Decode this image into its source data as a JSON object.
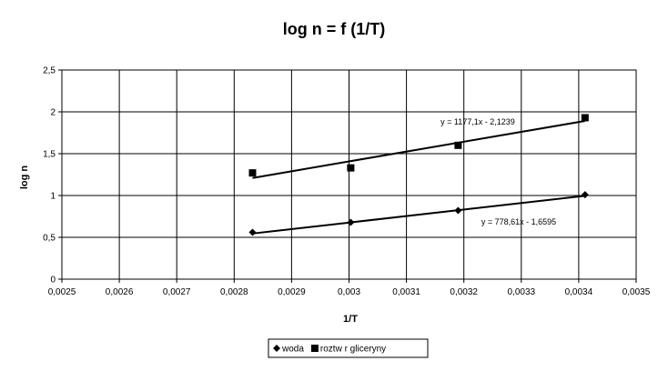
{
  "chart_data": {
    "type": "scatter",
    "title": "log n = f (1/T)",
    "xlabel": "1/T",
    "ylabel": "log n",
    "xlim": [
      0.0025,
      0.0035
    ],
    "ylim": [
      0,
      2.5
    ],
    "x_ticks": [
      "0,0025",
      "0,0026",
      "0,0027",
      "0,0028",
      "0,0029",
      "0,003",
      "0,0031",
      "0,0032",
      "0,0033",
      "0,0034",
      "0,0035"
    ],
    "y_ticks": [
      "0",
      "0,5",
      "1",
      "1,5",
      "2",
      "2,5"
    ],
    "grid": true,
    "legend_position": "bottom",
    "series": [
      {
        "name": "woda",
        "marker": "diamond",
        "color": "#000000",
        "x": [
          0.002832,
          0.003003,
          0.00319,
          0.003411
        ],
        "y": [
          0.56,
          0.68,
          0.82,
          1.01
        ],
        "trendline": {
          "slope": 778.61,
          "intercept": -1.6595,
          "label": "y = 778,61x - 1,6595"
        }
      },
      {
        "name": "roztw r gliceryny",
        "marker": "square",
        "color": "#000000",
        "x": [
          0.002832,
          0.003003,
          0.00319,
          0.003411
        ],
        "y": [
          1.27,
          1.33,
          1.6,
          1.93
        ],
        "trendline": {
          "slope": 1177.1,
          "intercept": -2.1239,
          "label": "y = 1177,1x - 2,1239"
        }
      }
    ]
  }
}
